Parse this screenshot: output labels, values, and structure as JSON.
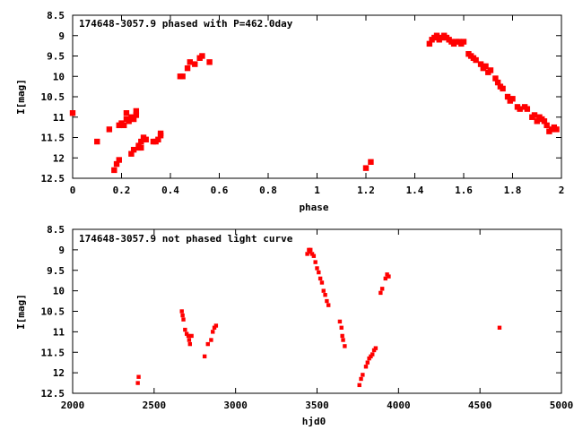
{
  "chart_data": [
    {
      "type": "scatter",
      "title": "174648-3057.9 phased with P=462.0day",
      "xlabel": "phase",
      "ylabel": "I[mag]",
      "xlim": [
        0,
        2
      ],
      "ylim": [
        12.5,
        8.5
      ],
      "y_inverted": true,
      "grid": false,
      "xticks": [
        "0",
        "0.2",
        "0.4",
        "0.6",
        "0.8",
        "1",
        "1.2",
        "1.4",
        "1.6",
        "1.8",
        "2"
      ],
      "yticks": [
        "8.5",
        "9",
        "9.5",
        "10",
        "10.5",
        "11",
        "11.5",
        "12",
        "12.5"
      ],
      "marker_color": "#ff0000",
      "series": [
        {
          "x": [
            0.0,
            0.1,
            0.15,
            0.17,
            0.18,
            0.19,
            0.19,
            0.2,
            0.21,
            0.22,
            0.22,
            0.23,
            0.24,
            0.24,
            0.25,
            0.25,
            0.26,
            0.26,
            0.27,
            0.27,
            0.28,
            0.28,
            0.29,
            0.3,
            0.33,
            0.34,
            0.35,
            0.36,
            0.36,
            0.44,
            0.45,
            0.47,
            0.48,
            0.5,
            0.52,
            0.53,
            0.56,
            1.2,
            1.22,
            1.46,
            1.47,
            1.48,
            1.49,
            1.5,
            1.51,
            1.52,
            1.53,
            1.54,
            1.55,
            1.56,
            1.57,
            1.58,
            1.59,
            1.6,
            1.62,
            1.63,
            1.64,
            1.65,
            1.67,
            1.68,
            1.69,
            1.7,
            1.71,
            1.73,
            1.74,
            1.75,
            1.76,
            1.78,
            1.79,
            1.8,
            1.82,
            1.83,
            1.85,
            1.86,
            1.88,
            1.89,
            1.9,
            1.91,
            1.92,
            1.93,
            1.94,
            1.95,
            1.96,
            1.97,
            1.98
          ],
          "y": [
            10.9,
            11.6,
            11.3,
            12.3,
            12.15,
            12.05,
            11.2,
            11.15,
            11.2,
            10.9,
            11.05,
            11.1,
            11.0,
            11.9,
            11.8,
            11.05,
            10.85,
            10.95,
            11.75,
            11.7,
            11.75,
            11.6,
            11.5,
            11.55,
            11.6,
            11.6,
            11.55,
            11.45,
            11.4,
            10.0,
            10.0,
            9.8,
            9.65,
            9.7,
            9.55,
            9.5,
            9.65,
            12.25,
            12.1,
            9.2,
            9.1,
            9.05,
            9.0,
            9.1,
            9.05,
            9.0,
            9.05,
            9.1,
            9.15,
            9.2,
            9.15,
            9.15,
            9.2,
            9.15,
            9.45,
            9.5,
            9.55,
            9.6,
            9.7,
            9.8,
            9.75,
            9.9,
            9.85,
            10.05,
            10.15,
            10.25,
            10.3,
            10.5,
            10.6,
            10.55,
            10.75,
            10.8,
            10.75,
            10.8,
            11.0,
            10.95,
            11.1,
            11.0,
            11.05,
            11.1,
            11.2,
            11.35,
            11.3,
            11.25,
            11.3
          ]
        }
      ]
    },
    {
      "type": "scatter",
      "title": "174648-3057.9 not phased light curve",
      "xlabel": "hjd0",
      "ylabel": "I[mag]",
      "xlim": [
        2000,
        5000
      ],
      "ylim": [
        12.5,
        8.5
      ],
      "y_inverted": true,
      "grid": false,
      "xticks": [
        "2000",
        "2500",
        "3000",
        "3500",
        "4000",
        "4500",
        "5000"
      ],
      "yticks": [
        "8.5",
        "9",
        "9.5",
        "10",
        "10.5",
        "11",
        "11.5",
        "12",
        "12.5"
      ],
      "marker_color": "#ff0000",
      "series": [
        {
          "x": [
            2400,
            2405,
            2670,
            2675,
            2680,
            2690,
            2700,
            2710,
            2715,
            2720,
            2730,
            2810,
            2830,
            2850,
            2860,
            2870,
            2880,
            3440,
            3450,
            3455,
            3460,
            3470,
            3480,
            3490,
            3500,
            3510,
            3520,
            3530,
            3540,
            3550,
            3560,
            3570,
            3640,
            3650,
            3655,
            3660,
            3670,
            3760,
            3770,
            3780,
            3800,
            3810,
            3820,
            3830,
            3840,
            3850,
            3860,
            3890,
            3900,
            3920,
            3930,
            3940,
            4620
          ],
          "y": [
            12.25,
            12.1,
            10.5,
            10.6,
            10.7,
            10.95,
            11.05,
            11.1,
            11.2,
            11.3,
            11.1,
            11.6,
            11.3,
            11.2,
            11.0,
            10.9,
            10.85,
            9.1,
            9.0,
            9.05,
            9.0,
            9.1,
            9.15,
            9.3,
            9.45,
            9.55,
            9.7,
            9.8,
            10.0,
            10.1,
            10.25,
            10.35,
            10.75,
            10.9,
            11.1,
            11.2,
            11.35,
            12.3,
            12.15,
            12.05,
            11.85,
            11.75,
            11.65,
            11.6,
            11.55,
            11.45,
            11.4,
            10.05,
            9.95,
            9.7,
            9.6,
            9.65,
            10.9
          ]
        }
      ]
    }
  ]
}
